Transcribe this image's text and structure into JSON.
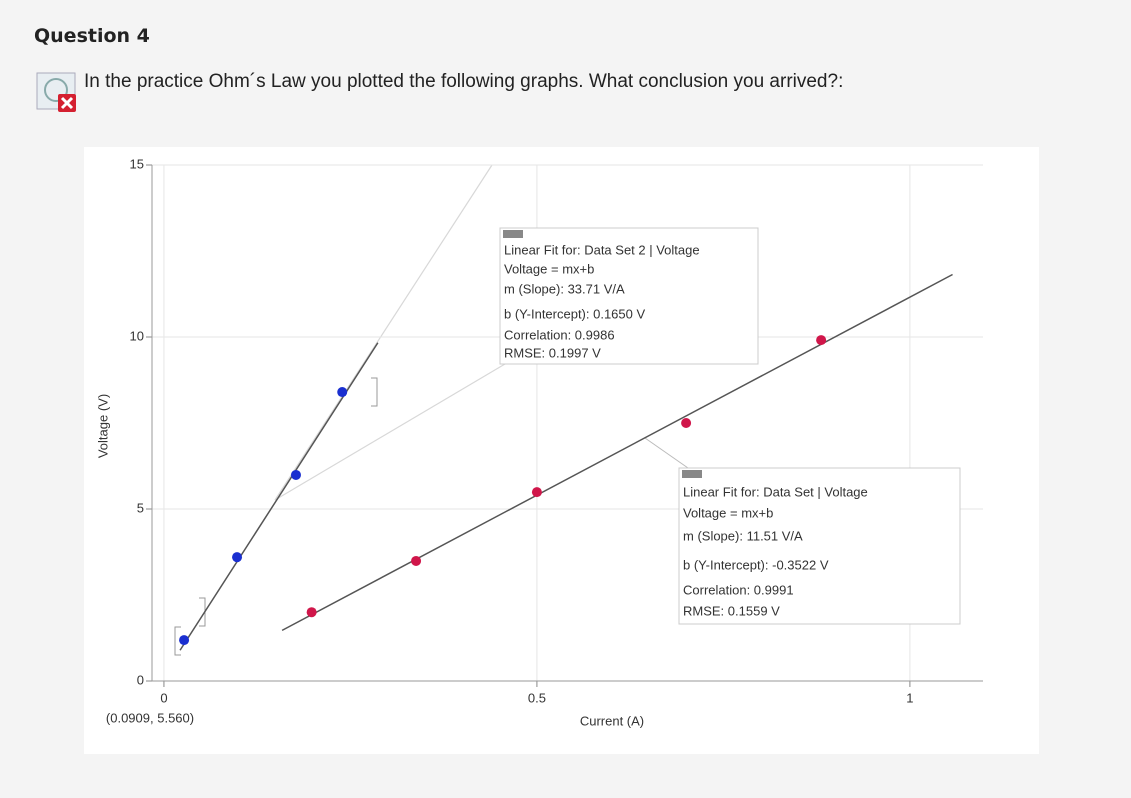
{
  "question": {
    "title": "Question 4",
    "prompt": "In the practice Ohm´s Law you plotted the following graphs. What conclusion you arrived?:"
  },
  "chart_data": {
    "type": "scatter",
    "x_label": "Current (A)",
    "y_label": "Voltage (V)",
    "cursor_readout": "(0.0909, 5.560)",
    "xlim": [
      -0.016,
      1.098
    ],
    "ylim": [
      0,
      15
    ],
    "xticks": [
      0,
      0.5,
      1
    ],
    "yticks": [
      0,
      5,
      10,
      15
    ],
    "grid": true,
    "series": [
      {
        "color": "#1a2fd0",
        "x": [
          0.027,
          0.098,
          0.177,
          0.239
        ],
        "values": [
          1.19,
          3.6,
          5.99,
          8.4
        ],
        "fit": {
          "m": 33.71,
          "b": 0.165
        },
        "annotation": [
          "Linear Fit for: Data Set 2 | Voltage",
          "Voltage = mx+b",
          "m (Slope): 33.71 V/A",
          "b (Y-Intercept): 0.1650 V",
          "Correlation: 0.9986",
          "RMSE: 0.1997 V"
        ]
      },
      {
        "color": "#d0164a",
        "x": [
          0.198,
          0.338,
          0.5,
          0.7,
          0.881
        ],
        "values": [
          2.0,
          3.49,
          5.49,
          7.5,
          9.91
        ],
        "fit": {
          "m": 11.51,
          "b": -0.3522
        },
        "annotation": [
          "Linear Fit for: Data Set | Voltage",
          "Voltage = mx+b",
          "m (Slope): 11.51 V/A",
          "b (Y-Intercept): -0.3522 V",
          "Correlation: 0.9991",
          "RMSE: 0.1559 V"
        ]
      }
    ]
  }
}
